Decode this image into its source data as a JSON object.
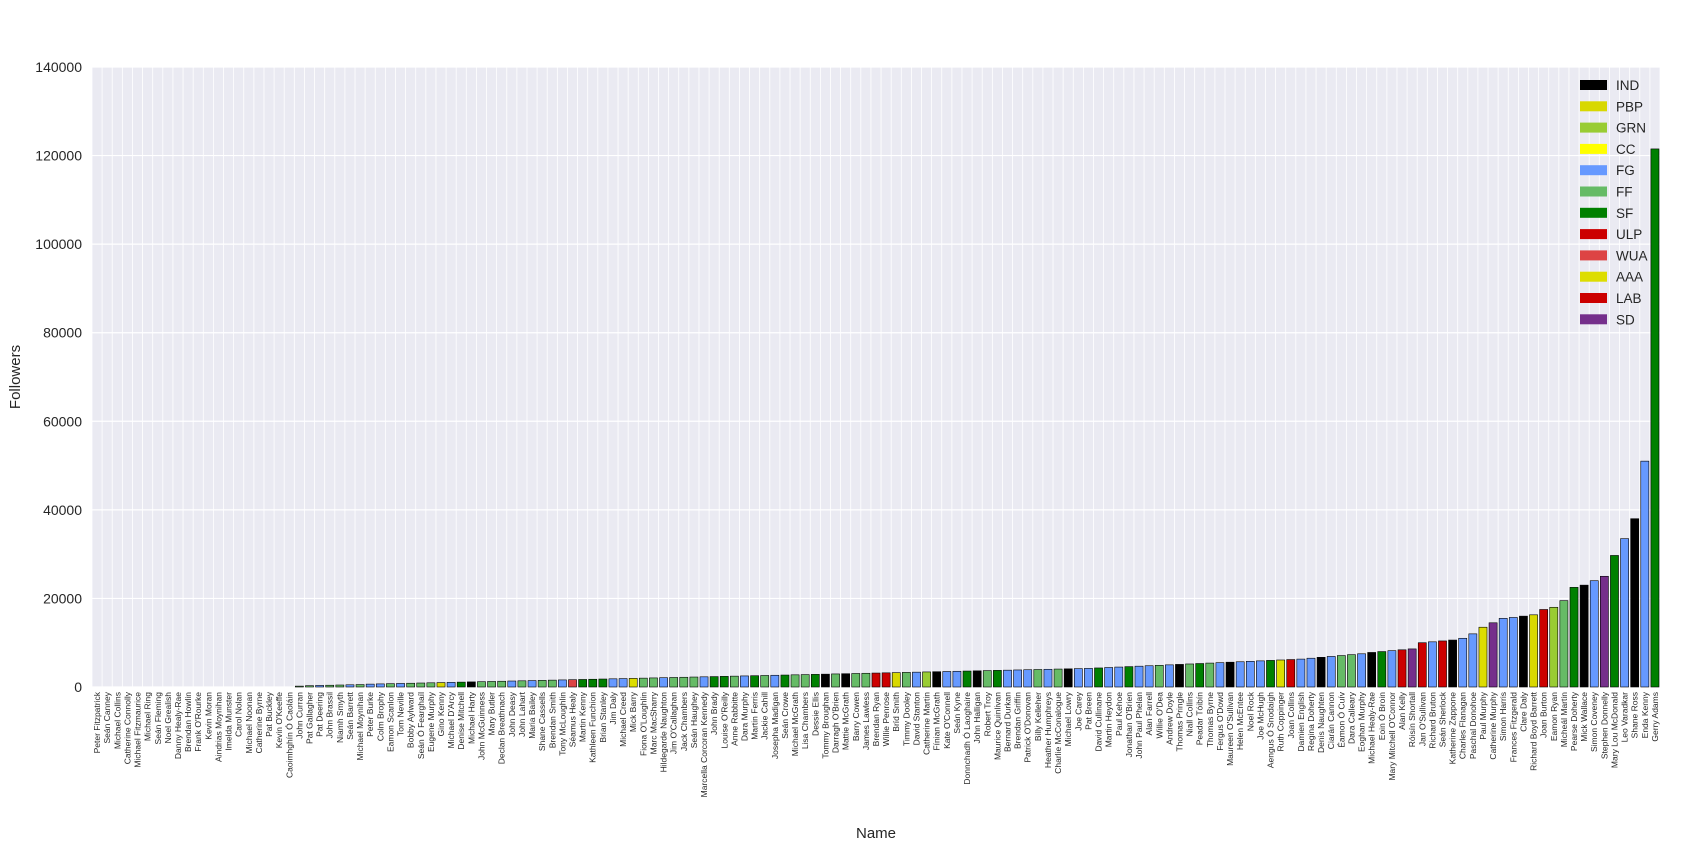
{
  "chart_data": {
    "type": "bar",
    "xlabel": "Name",
    "ylabel": "Followers",
    "ylim": [
      0,
      140000
    ],
    "yticks": [
      0,
      20000,
      40000,
      60000,
      80000,
      100000,
      120000,
      140000
    ],
    "grid": true,
    "legend_position": "top-right",
    "legend": [
      {
        "label": "IND",
        "color": "#000000"
      },
      {
        "label": "PBP",
        "color": "#d8d800"
      },
      {
        "label": "GRN",
        "color": "#99cc33"
      },
      {
        "label": "CC",
        "color": "#ffff00"
      },
      {
        "label": "FG",
        "color": "#6699ff"
      },
      {
        "label": "FF",
        "color": "#66bb66"
      },
      {
        "label": "SF",
        "color": "#008000"
      },
      {
        "label": "ULP",
        "color": "#cc0000"
      },
      {
        "label": "WUA",
        "color": "#dd4444"
      },
      {
        "label": "AAA",
        "color": "#dddd00"
      },
      {
        "label": "LAB",
        "color": "#cc0000"
      },
      {
        "label": "SD",
        "color": "#752f8b"
      }
    ],
    "categories": [
      "Peter Fitzpatrick",
      "Seán Canney",
      "Michael Collins",
      "Catherine Connolly",
      "Michael Fitzmaurice",
      "Michael Ring",
      "Seán Fleming",
      "Noel Grealish",
      "Danny Healy-Rae",
      "Brendan Howlin",
      "Frank O'Rourke",
      "Kevin Moran",
      "Aindrias Moynihan",
      "Imelda Munster",
      "Carol Nolan",
      "Michael Noonan",
      "Catherine Byrne",
      "Pat Buckley",
      "Kevin O'Keeffe",
      "Caoimhghín Ó Caoláin",
      "John Curran",
      "Pat Gallagher",
      "Pat Deering",
      "John Brassil",
      "Niamh Smyth",
      "Seán Barrett",
      "Michael Moynihan",
      "Peter Burke",
      "Colm Brophy",
      "Eamon Scanlon",
      "Tom Neville",
      "Bobby Aylward",
      "Seán Ó Fearghaíl",
      "Eugene Murphy",
      "Gino Kenny",
      "Michael D'Arcy",
      "Denise Mitchell",
      "Michael Harty",
      "John McGuinness",
      "Mary Butler",
      "Declan Breathnach",
      "John Deasy",
      "John Lahart",
      "Maria Bailey",
      "Shane Cassells",
      "Brendan Smith",
      "Tony McLoughlin",
      "Séamus Healy",
      "Martin Kenny",
      "Kathleen Funchion",
      "Brian Stanley",
      "Jim Daly",
      "Michael Creed",
      "Mick Barry",
      "Fiona O'Loughlin",
      "Marc MacSharry",
      "Hildegarde Naughton",
      "Jim O'Callaghan",
      "Jack Chambers",
      "Seán Haughey",
      "Marcella Corcoran Kennedy",
      "John Brady",
      "Louise O'Reilly",
      "Anne Rabbitte",
      "Dara Murphy",
      "Martin Ferris",
      "Jackie Cahill",
      "Josepha Madigan",
      "Seán Crowe",
      "Michael McGrath",
      "Lisa Chambers",
      "Dessie Ellis",
      "Tommy Broughan",
      "Darragh O'Brien",
      "Mattie McGrath",
      "Barry Cowen",
      "James Lawless",
      "Brendan Ryan",
      "Willie Penrose",
      "Bríd Smith",
      "Timmy Dooley",
      "David Stanton",
      "Catherine Martin",
      "Fínian McGrath",
      "Kate O'Connell",
      "Seán Kyne",
      "Donnchadh Ó Laoghaire",
      "John Halligan",
      "Robert Troy",
      "Maurice Quinlivan",
      "Bernard Durkan",
      "Brendan Griffin",
      "Patrick O'Donovan",
      "Billy Kelleher",
      "Heather Humphreys",
      "Charlie McConalogue",
      "Michael Lowry",
      "Joe Carey",
      "Pat Breen",
      "David Cullinane",
      "Martin Heydon",
      "Paul Kehoe",
      "Jonathan O'Brien",
      "John Paul Phelan",
      "Alan Farrell",
      "Willie O'Dea",
      "Andrew Doyle",
      "Thomas Pringle",
      "Niall Collins",
      "Peadar Tóibín",
      "Thomas Byrne",
      "Fergus O'Dowd",
      "Maureen O'Sullivan",
      "Helen McEntee",
      "Noel Rock",
      "Joe McHugh",
      "Aengus Ó Snodaigh",
      "Ruth Coppinger",
      "Joan Collins",
      "Damien English",
      "Regina Doherty",
      "Denis Naughten",
      "Ciarán Cannon",
      "Éamon Ó Cuív",
      "Dara Calleary",
      "Eoghan Murphy",
      "Michael Healy-Rae",
      "Eoin Ó Broin",
      "Mary Mitchell O'Connor",
      "Alan Kelly",
      "Róisín Shortall",
      "Jan O'Sullivan",
      "Richard Bruton",
      "Seán Sherlock",
      "Katherine Zappone",
      "Charles Flanagan",
      "Paschal Donohoe",
      "Paul Murphy",
      "Catherine Murphy",
      "Simon Harris",
      "Frances Fitzgerald",
      "Clare Daly",
      "Richard Boyd Barrett",
      "Joan Burton",
      "Eamon Ryan",
      "Micheál Martin",
      "Pearse Doherty",
      "Mick Wallace",
      "Simon Coveney",
      "Stephen Donnelly",
      "Mary Lou McDonald",
      "Leo Varadkar",
      "Shane Ross",
      "Enda Kenny",
      "Gerry Adams"
    ],
    "values": [
      0,
      0,
      0,
      0,
      0,
      0,
      0,
      0,
      0,
      0,
      0,
      0,
      0,
      0,
      0,
      0,
      0,
      0,
      0,
      0,
      200,
      300,
      350,
      400,
      450,
      500,
      550,
      650,
      700,
      750,
      800,
      850,
      900,
      950,
      1000,
      1050,
      1100,
      1150,
      1200,
      1250,
      1300,
      1350,
      1400,
      1450,
      1500,
      1550,
      1600,
      1650,
      1700,
      1750,
      1800,
      1850,
      1900,
      1950,
      2000,
      2050,
      2100,
      2150,
      2200,
      2250,
      2300,
      2350,
      2400,
      2450,
      2500,
      2550,
      2600,
      2650,
      2700,
      2750,
      2800,
      2850,
      2900,
      2950,
      3000,
      3050,
      3100,
      3150,
      3200,
      3250,
      3300,
      3350,
      3400,
      3450,
      3500,
      3550,
      3600,
      3650,
      3700,
      3750,
      3800,
      3850,
      3900,
      3950,
      4000,
      4050,
      4100,
      4150,
      4200,
      4300,
      4400,
      4500,
      4600,
      4700,
      4800,
      4900,
      5000,
      5100,
      5200,
      5300,
      5400,
      5500,
      5600,
      5700,
      5800,
      5900,
      6000,
      6100,
      6200,
      6300,
      6500,
      6700,
      6900,
      7100,
      7300,
      7500,
      7800,
      8000,
      8200,
      8400,
      8600,
      10000,
      10200,
      10400,
      10600,
      11000,
      12000,
      13500,
      14500,
      15500,
      15700,
      16000,
      16300,
      17500,
      18000,
      19500,
      22500,
      23000,
      24000,
      25000,
      29700,
      33500,
      38000,
      51000,
      121500
    ],
    "parties": [
      "FG",
      "IND",
      "IND",
      "IND",
      "IND",
      "FG",
      "FF",
      "IND",
      "IND",
      "LAB",
      "FF",
      "IND",
      "FF",
      "SF",
      "IND",
      "FG",
      "FG",
      "SF",
      "FF",
      "SF",
      "FF",
      "FF",
      "FG",
      "FF",
      "FF",
      "FG",
      "FF",
      "FG",
      "FG",
      "FF",
      "FG",
      "FF",
      "FF",
      "FF",
      "PBP",
      "FG",
      "SF",
      "IND",
      "FF",
      "FF",
      "FF",
      "FG",
      "FF",
      "FG",
      "FF",
      "FF",
      "FG",
      "WUA",
      "SF",
      "SF",
      "SF",
      "FG",
      "FG",
      "AAA",
      "FF",
      "FF",
      "FG",
      "FF",
      "FF",
      "FF",
      "FG",
      "SF",
      "SF",
      "FF",
      "FG",
      "SF",
      "FF",
      "FG",
      "SF",
      "FF",
      "FF",
      "SF",
      "IND",
      "FF",
      "IND",
      "FF",
      "FF",
      "LAB",
      "LAB",
      "PBP",
      "FF",
      "FG",
      "GRN",
      "IND",
      "FG",
      "FG",
      "SF",
      "IND",
      "FF",
      "SF",
      "FG",
      "FG",
      "FG",
      "FF",
      "FG",
      "FF",
      "IND",
      "FG",
      "FG",
      "SF",
      "FG",
      "FG",
      "SF",
      "FG",
      "FG",
      "FF",
      "FG",
      "IND",
      "FF",
      "SF",
      "FF",
      "FG",
      "IND",
      "FG",
      "FG",
      "FG",
      "SF",
      "AAA",
      "ULP",
      "FG",
      "FG",
      "IND",
      "FG",
      "FF",
      "FF",
      "FG",
      "IND",
      "SF",
      "FG",
      "LAB",
      "SD",
      "LAB",
      "FG",
      "LAB",
      "IND",
      "FG",
      "FG",
      "AAA",
      "SD",
      "FG",
      "FG",
      "IND",
      "PBP",
      "LAB",
      "GRN",
      "FF",
      "SF",
      "IND",
      "FG",
      "SD",
      "SF",
      "FG",
      "IND",
      "FG",
      "SF"
    ]
  }
}
